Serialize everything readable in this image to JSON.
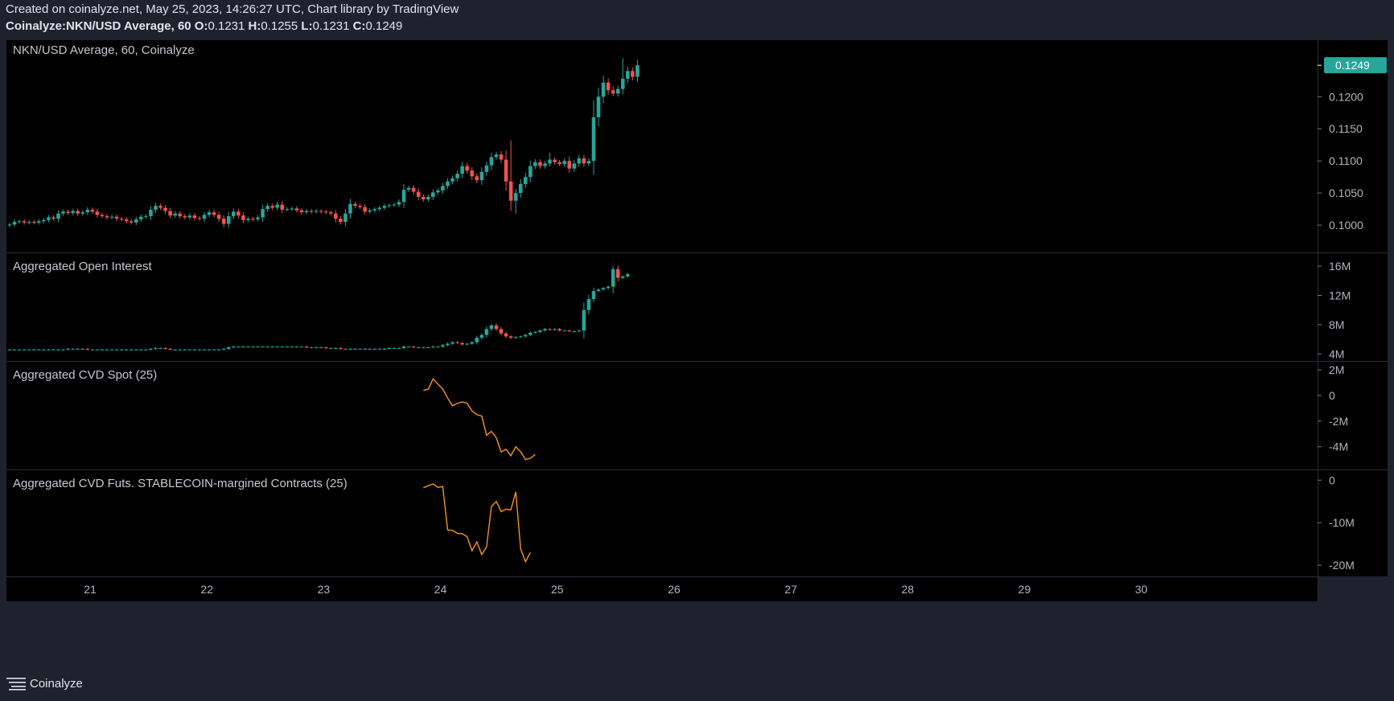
{
  "header": {
    "created_line": "Created on coinalyze.net, May 25, 2023, 14:26:27 UTC, Chart library by TradingView",
    "symbol": "Coinalyze:NKN/USD Average, 60",
    "ohlc": [
      {
        "key": "O:",
        "value": "0.1231"
      },
      {
        "key": "H:",
        "value": "0.1255"
      },
      {
        "key": "L:",
        "value": "0.1231"
      },
      {
        "key": "C:",
        "value": "0.1249"
      }
    ]
  },
  "colors": {
    "background": "#000000",
    "frame": "#1e222d",
    "bull": "#26a69a",
    "bear": "#ef5350",
    "line": "#f7931a",
    "last_price_badge": "#26a69a"
  },
  "footer": {
    "brand": "Coinalyze",
    "icon": "menu-lines-icon"
  },
  "chart_data": {
    "type": "candlestick",
    "x_axis": {
      "labels": [
        "21",
        "22",
        "23",
        "24",
        "25",
        "26",
        "27",
        "28",
        "29",
        "30"
      ]
    },
    "panes": [
      {
        "name": "price",
        "title": "NKN/USD Average, 60, Coinalyze",
        "y_ticks": [
          "0.1200",
          "0.1150",
          "0.1100",
          "0.1050",
          "0.1000"
        ],
        "y_tick_values": [
          0.12,
          0.115,
          0.11,
          0.105,
          0.1
        ],
        "ylim": [
          0.0965,
          0.1278
        ],
        "last_price": "0.1249",
        "last_price_value": 0.1249,
        "closes": [
          0.1001,
          0.1005,
          0.1006,
          0.1004,
          0.1005,
          0.1004,
          0.1006,
          0.1008,
          0.1012,
          0.101,
          0.1018,
          0.1021,
          0.1019,
          0.1022,
          0.1018,
          0.102,
          0.1024,
          0.1021,
          0.1016,
          0.1014,
          0.1012,
          0.1013,
          0.101,
          0.1009,
          0.1006,
          0.1004,
          0.1009,
          0.1013,
          0.1014,
          0.1024,
          0.103,
          0.1027,
          0.1022,
          0.1015,
          0.1018,
          0.1014,
          0.1012,
          0.1015,
          0.1011,
          0.101,
          0.1016,
          0.102,
          0.1016,
          0.101,
          0.1002,
          0.1014,
          0.1021,
          0.1015,
          0.1008,
          0.101,
          0.1009,
          0.1012,
          0.1025,
          0.103,
          0.1027,
          0.1032,
          0.1024,
          0.1025,
          0.1026,
          0.1023,
          0.102,
          0.1022,
          0.1021,
          0.1022,
          0.1021,
          0.102,
          0.1018,
          0.101,
          0.1005,
          0.1018,
          0.1033,
          0.103,
          0.1028,
          0.1021,
          0.1023,
          0.1025,
          0.1027,
          0.103,
          0.1031,
          0.1032,
          0.1036,
          0.1055,
          0.1058,
          0.1052,
          0.1044,
          0.104,
          0.1044,
          0.1051,
          0.1054,
          0.1061,
          0.1068,
          0.1073,
          0.108,
          0.1092,
          0.1085,
          0.1076,
          0.107,
          0.1083,
          0.1093,
          0.1106,
          0.111,
          0.1102,
          0.1068,
          0.1038,
          0.105,
          0.1064,
          0.1075,
          0.1092,
          0.1098,
          0.1092,
          0.1096,
          0.1102,
          0.1098,
          0.1095,
          0.11,
          0.1088,
          0.1096,
          0.1104,
          0.1096,
          0.11,
          0.1168,
          0.12,
          0.1222,
          0.121,
          0.1205,
          0.1212,
          0.1228,
          0.124,
          0.1231,
          0.1249
        ],
        "highs_extra": [
          [
            103,
            0.1132
          ],
          [
            111,
            0.1113
          ],
          [
            122,
            0.1233
          ],
          [
            126,
            0.126
          ],
          [
            124,
            0.1216
          ]
        ],
        "lows_extra": [
          [
            104,
            0.1018
          ],
          [
            103,
            0.1022
          ],
          [
            120,
            0.1078
          ]
        ]
      },
      {
        "name": "open_interest",
        "title": "Aggregated Open Interest",
        "y_ticks": [
          "16M",
          "12M",
          "8M",
          "4M"
        ],
        "y_tick_values": [
          16,
          12,
          8,
          4
        ],
        "ylim": [
          3.7,
          17.0
        ],
        "closes": [
          4.6,
          4.6,
          4.6,
          4.6,
          4.6,
          4.6,
          4.6,
          4.6,
          4.6,
          4.6,
          4.6,
          4.6,
          4.7,
          4.7,
          4.7,
          4.7,
          4.6,
          4.6,
          4.6,
          4.6,
          4.6,
          4.6,
          4.6,
          4.6,
          4.6,
          4.6,
          4.6,
          4.6,
          4.6,
          4.7,
          4.8,
          4.8,
          4.7,
          4.6,
          4.6,
          4.6,
          4.6,
          4.6,
          4.6,
          4.6,
          4.6,
          4.6,
          4.6,
          4.6,
          4.7,
          4.9,
          5.0,
          5.0,
          5.0,
          5.0,
          5.0,
          5.0,
          5.0,
          5.0,
          5.0,
          5.0,
          5.0,
          5.0,
          5.0,
          5.0,
          5.0,
          4.9,
          4.9,
          4.9,
          4.9,
          4.8,
          4.8,
          4.8,
          4.7,
          4.7,
          4.7,
          4.7,
          4.7,
          4.7,
          4.7,
          4.7,
          4.7,
          4.7,
          4.8,
          4.8,
          4.8,
          5.0,
          5.0,
          4.9,
          4.9,
          4.9,
          4.9,
          5.0,
          5.0,
          5.2,
          5.4,
          5.6,
          5.5,
          5.3,
          5.4,
          5.6,
          6.2,
          6.6,
          7.4,
          7.9,
          7.4,
          6.8,
          6.4,
          6.2,
          6.3,
          6.4,
          6.6,
          6.9,
          7.0,
          7.2,
          7.4,
          7.3,
          7.4,
          7.2,
          7.2,
          7.1,
          7.1,
          7.2,
          10.0,
          11.5,
          12.6,
          12.8,
          13.0,
          13.2,
          15.6,
          14.4,
          14.6,
          14.9
        ],
        "highs_extra": [
          [
            124,
            16.0
          ]
        ]
      },
      {
        "name": "cvd_spot",
        "title": "Aggregated CVD Spot (25)",
        "y_ticks": [
          "2M",
          "0",
          "-2M",
          "-4M"
        ],
        "y_tick_values": [
          2,
          0,
          -2,
          -4
        ],
        "ylim": [
          -5.4,
          2.2
        ],
        "first_index": 85,
        "values": [
          0.4,
          0.5,
          1.3,
          0.9,
          0.5,
          -0.2,
          -0.8,
          -0.6,
          -0.5,
          -0.6,
          -1.2,
          -1.5,
          -1.6,
          -3.1,
          -2.8,
          -3.3,
          -4.4,
          -4.2,
          -4.7,
          -4.0,
          -4.4,
          -5.0,
          -4.9,
          -4.6
        ]
      },
      {
        "name": "cvd_futs",
        "title": "Aggregated CVD Futs. STABLECOIN-margined Contracts (25)",
        "y_ticks": [
          "0",
          "-10M",
          "-20M"
        ],
        "y_tick_values": [
          0,
          -10,
          -20
        ],
        "ylim": [
          -21.5,
          1.0
        ],
        "first_index": 85,
        "values": [
          -1.8,
          -1.3,
          -0.9,
          -1.7,
          -1.5,
          -11.7,
          -11.8,
          -12.5,
          -12.6,
          -13.3,
          -16.6,
          -14.5,
          -17.5,
          -15.7,
          -6.2,
          -5.0,
          -7.4,
          -6.8,
          -7.0,
          -2.8,
          -16.2,
          -19.2,
          -17.0
        ]
      }
    ]
  }
}
